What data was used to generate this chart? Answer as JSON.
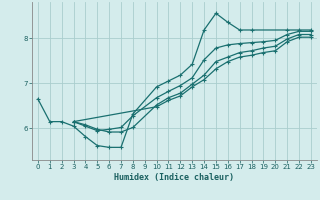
{
  "xlabel": "Humidex (Indice chaleur)",
  "bg_color": "#d4ecec",
  "grid_color": "#aacece",
  "line_color": "#1a7070",
  "xlim": [
    -0.5,
    23.5
  ],
  "ylim": [
    5.3,
    8.8
  ],
  "xticks": [
    0,
    1,
    2,
    3,
    4,
    5,
    6,
    7,
    8,
    9,
    10,
    11,
    12,
    13,
    14,
    15,
    16,
    17,
    18,
    19,
    20,
    21,
    22,
    23
  ],
  "yticks": [
    6,
    7,
    8
  ],
  "lines": [
    {
      "x": [
        0,
        1,
        2,
        3,
        4,
        5,
        6,
        7,
        8,
        10,
        11,
        12,
        13,
        14,
        15,
        16,
        17,
        18,
        21,
        22,
        23
      ],
      "y": [
        6.65,
        6.15,
        6.15,
        6.05,
        5.82,
        5.62,
        5.58,
        5.58,
        6.32,
        6.92,
        7.05,
        7.18,
        7.42,
        8.18,
        8.55,
        8.35,
        8.18,
        8.18,
        8.18,
        8.18,
        8.18
      ]
    },
    {
      "x": [
        3,
        4,
        5,
        6,
        7,
        8,
        10,
        11,
        12,
        13,
        14,
        15,
        16,
        17,
        18,
        19,
        20,
        21,
        22,
        23
      ],
      "y": [
        6.15,
        6.05,
        5.95,
        5.98,
        6.02,
        6.28,
        6.68,
        6.82,
        6.95,
        7.12,
        7.52,
        7.78,
        7.85,
        7.88,
        7.9,
        7.92,
        7.95,
        8.08,
        8.15,
        8.15
      ]
    },
    {
      "x": [
        3,
        4,
        5,
        6,
        7,
        8,
        10,
        11,
        12,
        13,
        14,
        15,
        16,
        17,
        18,
        19,
        20,
        21,
        22,
        23
      ],
      "y": [
        6.15,
        6.08,
        5.98,
        5.92,
        5.92,
        6.02,
        6.52,
        6.68,
        6.78,
        6.98,
        7.18,
        7.48,
        7.58,
        7.68,
        7.72,
        7.78,
        7.82,
        7.98,
        8.08,
        8.08
      ]
    },
    {
      "x": [
        3,
        10,
        11,
        12,
        13,
        14,
        15,
        16,
        17,
        18,
        19,
        20,
        21,
        22,
        23
      ],
      "y": [
        6.15,
        6.48,
        6.62,
        6.72,
        6.92,
        7.08,
        7.32,
        7.48,
        7.58,
        7.62,
        7.68,
        7.72,
        7.92,
        8.02,
        8.02
      ]
    }
  ]
}
